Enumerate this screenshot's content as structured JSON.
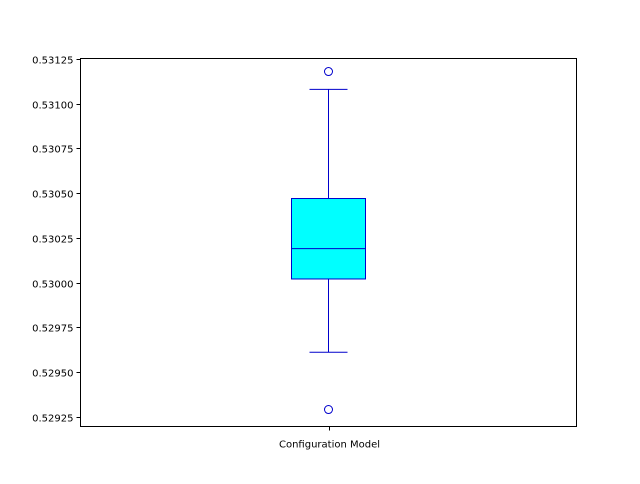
{
  "chart_data": {
    "type": "box",
    "categories": [
      "Configuration Model"
    ],
    "boxes": [
      {
        "name": "Configuration Model",
        "whisker_low": 0.52961,
        "q1": 0.53002,
        "median": 0.53019,
        "q3": 0.53047,
        "whisker_high": 0.53108,
        "outliers": [
          0.53118,
          0.52929
        ]
      }
    ],
    "ylim": [
      0.529195,
      0.531253
    ],
    "yticks": [
      0.52925,
      0.5295,
      0.52975,
      0.53,
      0.53025,
      0.5305,
      0.53075,
      0.531,
      0.53125
    ],
    "ytick_labels": [
      "0.52925",
      "0.52950",
      "0.52975",
      "0.53000",
      "0.53025",
      "0.53050",
      "0.53075",
      "0.53100",
      "0.53125"
    ],
    "xlabel": "",
    "ylabel": "",
    "title": "",
    "grid": false,
    "colors": {
      "box_fill": "#00ffff",
      "box_edge": "#0000cc",
      "whisker": "#0000cc",
      "median": "#0000cc",
      "outlier": "#0000cc",
      "axes": "#000000"
    }
  }
}
